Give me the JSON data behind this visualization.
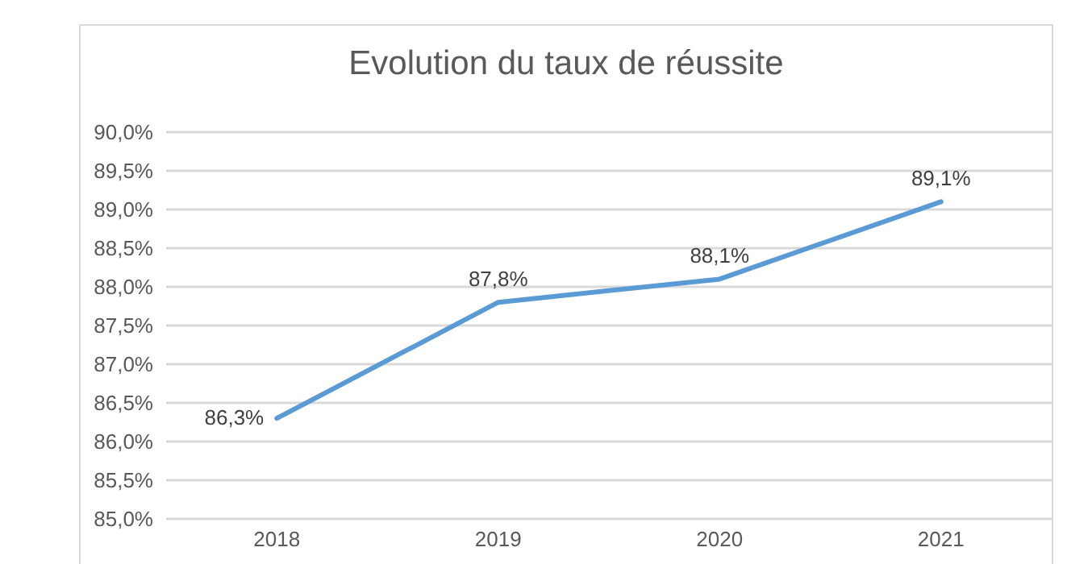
{
  "chart_data": {
    "type": "line",
    "title": "Evolution du taux de réussite",
    "categories": [
      "2018",
      "2019",
      "2020",
      "2021"
    ],
    "series": [
      {
        "color": "#5b9bd5",
        "values": [
          86.3,
          87.8,
          88.1,
          89.1
        ],
        "value_labels": [
          "86,3%",
          "87,8%",
          "88,1%",
          "89,1%"
        ]
      }
    ],
    "ylim": [
      85,
      90
    ],
    "yticks": [
      {
        "value": 85,
        "label": "85,0%"
      },
      {
        "value": 85.5,
        "label": "85,5%"
      },
      {
        "value": 86,
        "label": "86,0%"
      },
      {
        "value": 86.5,
        "label": "86,5%"
      },
      {
        "value": 87,
        "label": "87,0%"
      },
      {
        "value": 87.5,
        "label": "87,5%"
      },
      {
        "value": 88,
        "label": "88,0%"
      },
      {
        "value": 88.5,
        "label": "88,5%"
      },
      {
        "value": 89,
        "label": "89,0%"
      },
      {
        "value": 89.5,
        "label": "89,5%"
      },
      {
        "value": 90,
        "label": "90,0%"
      }
    ],
    "grid": "y",
    "marker": "none",
    "line_style": "solid"
  }
}
